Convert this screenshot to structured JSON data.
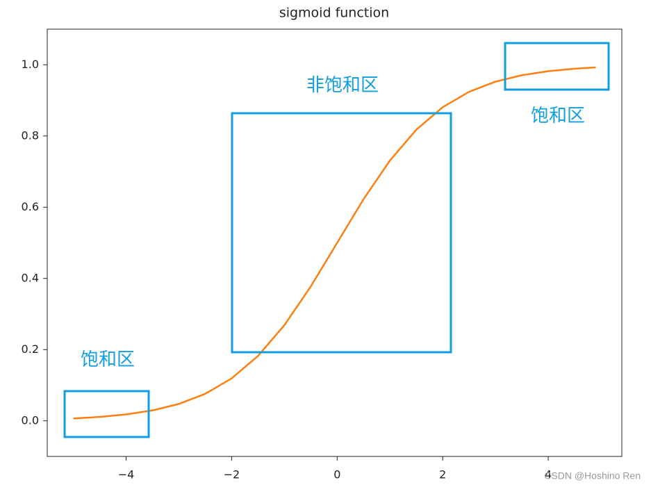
{
  "chart_data": {
    "type": "line",
    "title": "sigmoid function",
    "x": [
      -5,
      -4.5,
      -4,
      -3.5,
      -3,
      -2.5,
      -2,
      -1.5,
      -1,
      -0.5,
      0,
      0.5,
      1,
      1.5,
      2,
      2.5,
      3,
      3.5,
      4,
      4.5,
      4.9
    ],
    "series": [
      {
        "color": "#ff7f0e",
        "values": [
          0.0067,
          0.011,
          0.018,
          0.0293,
          0.0474,
          0.0759,
          0.1192,
          0.1824,
          0.2689,
          0.3775,
          0.5,
          0.6225,
          0.7311,
          0.8176,
          0.8808,
          0.9241,
          0.9526,
          0.9707,
          0.982,
          0.989,
          0.9926
        ]
      }
    ],
    "xlim": [
      -5.495,
      5.395
    ],
    "ylim": [
      -0.1,
      1.1
    ],
    "xticks": [
      {
        "value": -4,
        "label": "−4"
      },
      {
        "value": -2,
        "label": "−2"
      },
      0,
      2,
      4
    ],
    "yticks": [
      {
        "value": 0,
        "label": "0.0"
      },
      {
        "value": 0.2,
        "label": "0.2"
      },
      {
        "value": 0.4,
        "label": "0.4"
      },
      {
        "value": 0.6,
        "label": "0.6"
      },
      {
        "value": 0.8,
        "label": "0.8"
      },
      {
        "value": 1,
        "label": "1.0"
      }
    ],
    "annotations": [
      "饱和区",
      "非饱和区",
      "饱和区"
    ],
    "watermark": "CSDN @Hoshino Ren"
  }
}
